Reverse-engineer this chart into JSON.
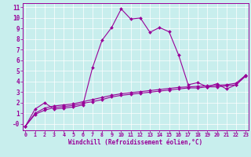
{
  "bg_color": "#c8eeed",
  "line_color": "#990099",
  "xlim_min": -0.3,
  "xlim_max": 23.3,
  "ylim_min": -0.6,
  "ylim_max": 11.4,
  "xticks": [
    0,
    1,
    2,
    3,
    4,
    5,
    6,
    7,
    8,
    9,
    10,
    11,
    12,
    13,
    14,
    15,
    16,
    17,
    18,
    19,
    20,
    21,
    22,
    23
  ],
  "yticks": [
    0,
    1,
    2,
    3,
    4,
    5,
    6,
    7,
    8,
    9,
    10,
    11
  ],
  "ytick_labels": [
    "-0",
    "1",
    "2",
    "3",
    "4",
    "5",
    "6",
    "7",
    "8",
    "9",
    "10",
    "11"
  ],
  "xlabel": "Windchill (Refroidissement éolien,°C)",
  "series1_x": [
    0,
    1,
    2,
    3,
    4,
    5,
    6,
    7,
    8,
    9,
    10,
    11,
    12,
    13,
    14,
    15,
    16,
    17,
    18,
    19,
    20,
    21,
    22,
    23
  ],
  "series1_y": [
    -0.2,
    1.4,
    2.0,
    1.4,
    1.5,
    1.6,
    1.8,
    5.3,
    7.9,
    9.1,
    10.85,
    9.9,
    10.0,
    8.65,
    9.1,
    8.7,
    6.5,
    3.7,
    3.9,
    3.5,
    3.8,
    3.3,
    3.7,
    4.6
  ],
  "series2_x": [
    0,
    1,
    2,
    3,
    4,
    5,
    6,
    7,
    8,
    9,
    10,
    11,
    12,
    13,
    14,
    15,
    16,
    17,
    18,
    19,
    20,
    21,
    22,
    23
  ],
  "series2_y": [
    -0.2,
    1.0,
    1.5,
    1.7,
    1.8,
    1.9,
    2.1,
    2.3,
    2.5,
    2.7,
    2.85,
    2.95,
    3.05,
    3.15,
    3.25,
    3.35,
    3.45,
    3.5,
    3.55,
    3.6,
    3.65,
    3.7,
    3.85,
    4.6
  ],
  "series3_x": [
    0,
    1,
    2,
    3,
    4,
    5,
    6,
    7,
    8,
    9,
    10,
    11,
    12,
    13,
    14,
    15,
    16,
    17,
    18,
    19,
    20,
    21,
    22,
    23
  ],
  "series3_y": [
    -0.2,
    0.9,
    1.3,
    1.55,
    1.65,
    1.75,
    1.95,
    2.1,
    2.3,
    2.55,
    2.7,
    2.8,
    2.9,
    3.0,
    3.1,
    3.2,
    3.3,
    3.4,
    3.4,
    3.5,
    3.5,
    3.6,
    3.7,
    4.5
  ],
  "grid_color": "white",
  "grid_lw": 0.5,
  "line_lw": 0.8,
  "marker": "D",
  "marker_size": 2.0
}
